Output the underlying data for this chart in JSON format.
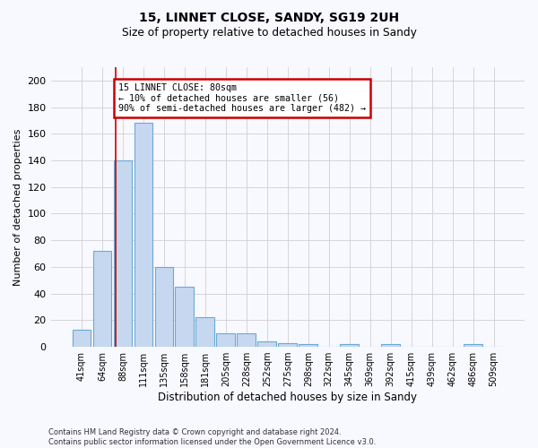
{
  "title": "15, LINNET CLOSE, SANDY, SG19 2UH",
  "subtitle": "Size of property relative to detached houses in Sandy",
  "xlabel": "Distribution of detached houses by size in Sandy",
  "ylabel": "Number of detached properties",
  "footnote1": "Contains HM Land Registry data © Crown copyright and database right 2024.",
  "footnote2": "Contains public sector information licensed under the Open Government Licence v3.0.",
  "categories": [
    "41sqm",
    "64sqm",
    "88sqm",
    "111sqm",
    "135sqm",
    "158sqm",
    "181sqm",
    "205sqm",
    "228sqm",
    "252sqm",
    "275sqm",
    "298sqm",
    "322sqm",
    "345sqm",
    "369sqm",
    "392sqm",
    "415sqm",
    "439sqm",
    "462sqm",
    "486sqm",
    "509sqm"
  ],
  "values": [
    13,
    72,
    140,
    168,
    60,
    45,
    22,
    10,
    10,
    4,
    3,
    2,
    0,
    2,
    0,
    2,
    0,
    0,
    0,
    2,
    0
  ],
  "bar_color": "#c5d8f0",
  "bar_edge_color": "#6aaad4",
  "annotation_line_color": "#cc0000",
  "annotation_box_color": "#ffffff",
  "annotation_box_edge": "#cc0000",
  "annotation_text_line1": "15 LINNET CLOSE: 80sqm",
  "annotation_text_line2": "← 10% of detached houses are smaller (56)",
  "annotation_text_line3": "90% of semi-detached houses are larger (482) →",
  "grid_color": "#d0d0d0",
  "background_color": "#f8f8ff",
  "ylim": [
    0,
    210
  ],
  "yticks": [
    0,
    20,
    40,
    60,
    80,
    100,
    120,
    140,
    160,
    180,
    200
  ]
}
